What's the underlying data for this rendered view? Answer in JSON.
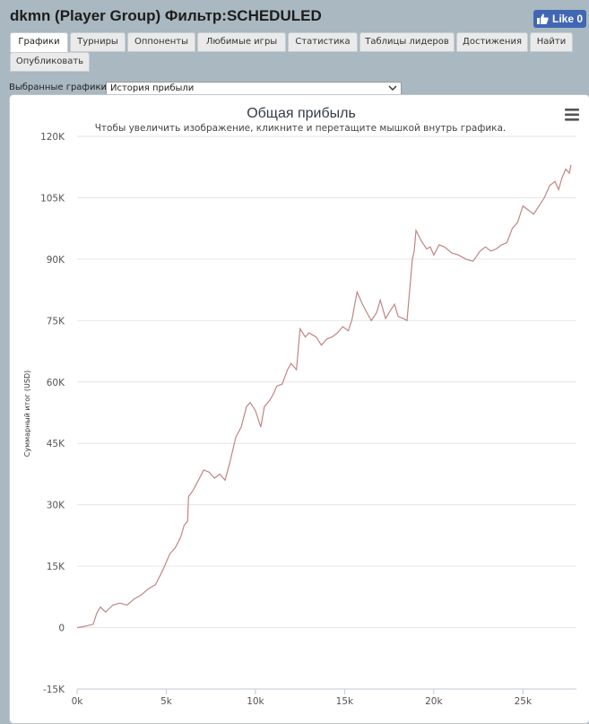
{
  "page_title": "dkmn (Player Group) Фильтр:SCHEDULED",
  "like_button": {
    "label": "Like 0",
    "icon": "thumbs-up-icon"
  },
  "tabs": [
    {
      "label": "Графики",
      "active": true
    },
    {
      "label": "Турниры"
    },
    {
      "label": "Оппоненты"
    },
    {
      "label": "Любимые игры"
    },
    {
      "label": "Статистика"
    },
    {
      "label": "Таблицы лидеров"
    },
    {
      "label": "Достижения"
    },
    {
      "label": "Найти"
    },
    {
      "label": "Опубликовать"
    }
  ],
  "graph_select": {
    "label": "Выбранные графики:",
    "value": "История прибыли"
  },
  "chart_data": {
    "type": "line",
    "title": "Общая прибыль",
    "subtitle": "Чтобы увеличить изображение, кликните и перетащите мышкой внутрь графика.",
    "ylabel": "Суммарный итог (USD)",
    "xlabel": "",
    "xlim": [
      0,
      28000
    ],
    "ylim": [
      -15000,
      120000
    ],
    "x_ticks": [
      0,
      5000,
      10000,
      15000,
      20000,
      25000
    ],
    "x_tick_labels": [
      "0k",
      "5k",
      "10k",
      "15k",
      "20k",
      "25k"
    ],
    "y_ticks": [
      -15000,
      0,
      15000,
      30000,
      45000,
      60000,
      75000,
      90000,
      105000,
      120000
    ],
    "y_tick_labels": [
      "-15K",
      "0",
      "15K",
      "30K",
      "45K",
      "60K",
      "75K",
      "90K",
      "105K",
      "120K"
    ],
    "line_color": "#c08585",
    "series": [
      {
        "name": "Общая прибыль",
        "x": [
          0,
          300,
          600,
          900,
          1100,
          1300,
          1600,
          2000,
          2400,
          2800,
          3200,
          3600,
          4000,
          4400,
          4800,
          5000,
          5200,
          5500,
          5800,
          6000,
          6200,
          6250,
          6500,
          6800,
          7100,
          7400,
          7700,
          8000,
          8300,
          8600,
          8900,
          9200,
          9500,
          9700,
          10000,
          10300,
          10500,
          10800,
          11000,
          11200,
          11500,
          11800,
          12000,
          12300,
          12500,
          12800,
          13000,
          13200,
          13400,
          13700,
          14000,
          14300,
          14600,
          14900,
          15200,
          15400,
          15700,
          16000,
          16300,
          16500,
          16800,
          17000,
          17300,
          17500,
          17800,
          18000,
          18300,
          18500,
          18800,
          18900,
          19000,
          19300,
          19600,
          19800,
          20000,
          20300,
          20600,
          21000,
          21400,
          21800,
          22200,
          22600,
          22900,
          23200,
          23500,
          23800,
          24100,
          24400,
          24700,
          25000,
          25300,
          25600,
          25900,
          26200,
          26500,
          26800,
          27000,
          27200,
          27400,
          27600,
          27700
        ],
        "y": [
          0,
          200,
          500,
          800,
          3500,
          5000,
          3800,
          5500,
          6000,
          5500,
          7000,
          8000,
          9500,
          10500,
          14000,
          16000,
          18000,
          19500,
          22000,
          25000,
          26000,
          32000,
          33500,
          36000,
          38500,
          38000,
          36500,
          37500,
          36000,
          41000,
          46500,
          49000,
          54000,
          55000,
          53000,
          49000,
          54000,
          55500,
          57000,
          59000,
          59500,
          63000,
          64500,
          63000,
          73000,
          71000,
          72000,
          71500,
          71000,
          69000,
          70500,
          71000,
          72000,
          73500,
          72500,
          75000,
          82000,
          79000,
          76500,
          75000,
          77000,
          80000,
          75500,
          77000,
          79000,
          76000,
          75500,
          75000,
          90000,
          92000,
          97000,
          94500,
          92500,
          93000,
          91000,
          93500,
          93000,
          91500,
          91000,
          90000,
          89500,
          92000,
          93000,
          92000,
          92500,
          93500,
          94000,
          97500,
          99000,
          103000,
          102000,
          101000,
          103000,
          105000,
          108000,
          109000,
          107000,
          110000,
          112000,
          111000,
          113000
        ]
      }
    ]
  }
}
